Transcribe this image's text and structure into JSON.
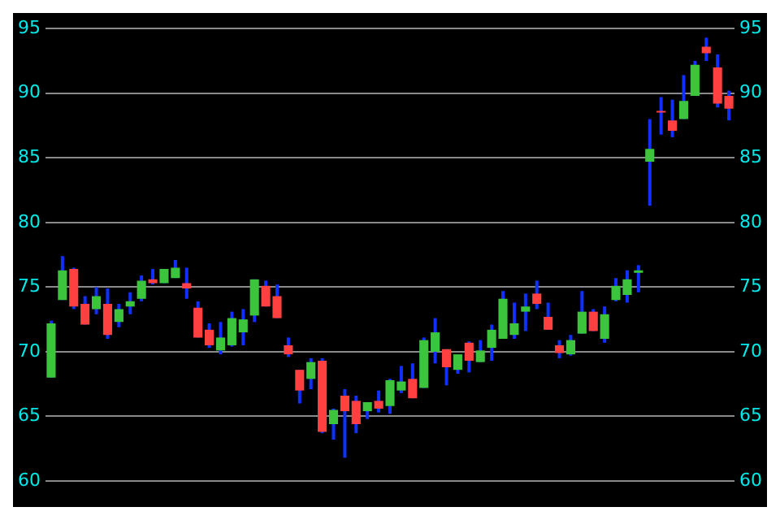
{
  "chart_data": {
    "type": "candlestick",
    "categories": [
      null,
      null,
      null,
      null,
      null,
      null,
      null,
      null,
      null,
      null,
      null,
      null,
      null,
      null,
      null,
      null,
      null,
      null,
      null,
      null,
      null,
      null,
      null,
      null,
      null,
      null,
      null,
      null,
      null,
      null,
      null,
      null,
      null,
      null,
      null,
      null,
      null,
      null,
      null,
      null,
      null,
      null,
      null,
      null,
      null,
      null,
      null,
      null,
      null,
      null,
      null,
      null,
      null,
      null,
      null,
      null,
      null,
      null,
      null,
      null,
      null
    ],
    "ohlc": [
      [
        68.0,
        72.4,
        68.0,
        72.2
      ],
      [
        74.0,
        77.4,
        74.0,
        76.3
      ],
      [
        76.4,
        76.5,
        73.3,
        73.5
      ],
      [
        73.7,
        74.3,
        72.1,
        72.1
      ],
      [
        73.3,
        75.0,
        72.9,
        74.3
      ],
      [
        73.7,
        74.9,
        71.0,
        71.3
      ],
      [
        72.3,
        73.7,
        71.9,
        73.3
      ],
      [
        73.5,
        74.6,
        72.9,
        73.9
      ],
      [
        74.1,
        75.9,
        73.9,
        75.5
      ],
      [
        75.6,
        76.4,
        75.2,
        75.3
      ],
      [
        75.3,
        76.4,
        75.3,
        76.4
      ],
      [
        75.7,
        77.1,
        75.7,
        76.5
      ],
      [
        75.3,
        76.5,
        74.1,
        74.9
      ],
      [
        73.4,
        73.9,
        71.1,
        71.1
      ],
      [
        71.7,
        72.2,
        70.3,
        70.5
      ],
      [
        70.1,
        72.3,
        69.8,
        71.1
      ],
      [
        70.5,
        73.1,
        70.4,
        72.6
      ],
      [
        71.5,
        73.3,
        70.5,
        72.5
      ],
      [
        72.8,
        75.6,
        72.3,
        75.6
      ],
      [
        75.1,
        75.5,
        73.5,
        73.5
      ],
      [
        74.3,
        75.2,
        72.6,
        72.6
      ],
      [
        70.5,
        71.1,
        69.6,
        69.8
      ],
      [
        68.6,
        68.6,
        66.0,
        67.0
      ],
      [
        67.9,
        69.5,
        67.1,
        69.2
      ],
      [
        69.3,
        69.5,
        63.7,
        63.8
      ],
      [
        64.4,
        65.6,
        63.2,
        65.5
      ],
      [
        66.6,
        67.1,
        61.8,
        65.4
      ],
      [
        66.2,
        66.6,
        63.7,
        64.4
      ],
      [
        65.4,
        66.1,
        64.8,
        66.1
      ],
      [
        66.2,
        67.0,
        65.3,
        65.6
      ],
      [
        65.8,
        67.9,
        65.2,
        67.8
      ],
      [
        67.0,
        68.9,
        66.8,
        67.7
      ],
      [
        67.9,
        69.1,
        66.4,
        66.4
      ],
      [
        67.2,
        71.1,
        67.2,
        70.9
      ],
      [
        70.0,
        72.6,
        69.1,
        71.5
      ],
      [
        70.2,
        70.2,
        67.4,
        68.8
      ],
      [
        68.6,
        69.8,
        68.3,
        69.8
      ],
      [
        70.7,
        70.8,
        68.4,
        69.3
      ],
      [
        69.2,
        70.9,
        69.2,
        70.1
      ],
      [
        70.3,
        72.1,
        69.3,
        71.7
      ],
      [
        71.0,
        74.7,
        71.0,
        74.1
      ],
      [
        71.3,
        73.8,
        71.0,
        72.2
      ],
      [
        73.1,
        74.5,
        71.6,
        73.5
      ],
      [
        74.5,
        75.5,
        73.3,
        73.7
      ],
      [
        72.7,
        73.8,
        71.7,
        71.7
      ],
      [
        70.5,
        70.9,
        69.5,
        69.9
      ],
      [
        69.8,
        71.3,
        69.7,
        70.9
      ],
      [
        71.4,
        74.7,
        71.4,
        73.1
      ],
      [
        73.1,
        73.3,
        71.6,
        71.6
      ],
      [
        71.0,
        73.5,
        70.7,
        72.9
      ],
      [
        74.0,
        75.7,
        73.9,
        75.1
      ],
      [
        74.4,
        76.3,
        73.8,
        75.6
      ],
      [
        76.1,
        76.7,
        74.6,
        76.3
      ],
      [
        84.7,
        88.0,
        81.3,
        85.7
      ],
      [
        88.5,
        89.7,
        86.8,
        88.5
      ],
      [
        87.9,
        89.5,
        86.6,
        87.1
      ],
      [
        88.0,
        91.4,
        88.0,
        89.4
      ],
      [
        89.8,
        92.5,
        89.8,
        92.2
      ],
      [
        93.6,
        94.3,
        92.5,
        93.1
      ],
      [
        92.0,
        93.0,
        88.9,
        89.2
      ],
      [
        89.8,
        90.2,
        87.9,
        88.8
      ]
    ],
    "colors": [
      "#3dc43d",
      "#3dc43d",
      "#ff4040",
      "#ff4040",
      "#3dc43d",
      "#ff4040",
      "#3dc43d",
      "#3dc43d",
      "#3dc43d",
      "#ff4040",
      "#3dc43d",
      "#3dc43d",
      "#ff4040",
      "#ff4040",
      "#ff4040",
      "#3dc43d",
      "#3dc43d",
      "#3dc43d",
      "#3dc43d",
      "#ff4040",
      "#ff4040",
      "#ff4040",
      "#ff4040",
      "#3dc43d",
      "#ff4040",
      "#3dc43d",
      "#ff4040",
      "#ff4040",
      "#3dc43d",
      "#ff4040",
      "#3dc43d",
      "#3dc43d",
      "#ff4040",
      "#3dc43d",
      "#3dc43d",
      "#ff4040",
      "#3dc43d",
      "#ff4040",
      "#3dc43d",
      "#3dc43d",
      "#3dc43d",
      "#3dc43d",
      "#3dc43d",
      "#ff4040",
      "#ff4040",
      "#ff4040",
      "#3dc43d",
      "#3dc43d",
      "#ff4040",
      "#3dc43d",
      "#3dc43d",
      "#3dc43d",
      "#3dc43d",
      "#3dc43d",
      "#ff4040",
      "#ff4040",
      "#3dc43d",
      "#3dc43d",
      "#ff4040",
      "#ff4040",
      "#ff4040"
    ],
    "color": "#1030ff",
    "ylim": [
      60,
      95
    ],
    "yticks": [
      60,
      65,
      70,
      75,
      80,
      85,
      90,
      95
    ],
    "y2lim": [
      60,
      95
    ],
    "y2ticks": [
      60,
      65,
      70,
      75,
      80,
      85,
      90,
      95
    ],
    "grid": "y",
    "legend": false,
    "tick_labels": "y"
  }
}
